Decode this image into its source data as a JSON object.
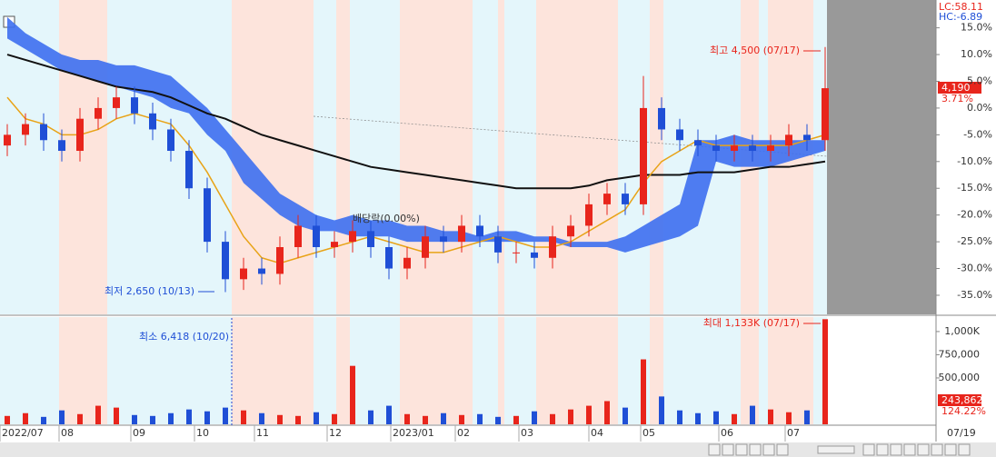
{
  "chart_data": {
    "type": "candlestick",
    "ylim": [
      -38.4,
      20.2
    ],
    "yticks": [
      {
        "value": 15,
        "label": "15.0%"
      },
      {
        "value": 10,
        "label": "10.0%"
      },
      {
        "value": 5,
        "label": "5.0%"
      },
      {
        "value": 0,
        "label": "0.0%"
      },
      {
        "value": -5,
        "label": "-5.0%"
      },
      {
        "value": -10,
        "label": "-10.0%"
      },
      {
        "value": -15,
        "label": "-15.0%"
      },
      {
        "value": -20,
        "label": "-20.0%"
      },
      {
        "value": -25,
        "label": "-25.0%"
      },
      {
        "value": -30,
        "label": "-30.0%"
      },
      {
        "value": -35,
        "label": "-35.0%"
      }
    ],
    "x_labels": [
      "2022/07",
      "08",
      "09",
      "10",
      "11",
      "12",
      "2023/01",
      "02",
      "03",
      "04",
      "05",
      "06",
      "07"
    ],
    "open": [
      -7,
      -5,
      -3,
      -6,
      -8,
      -2,
      0,
      2,
      -1,
      -4,
      -8,
      -15,
      -25,
      -32,
      -30,
      -31,
      -26,
      -22,
      -26,
      -25,
      -23,
      -26,
      -30,
      -28,
      -24,
      -25,
      -22,
      -24,
      -27,
      -27,
      -28,
      -24,
      -22,
      -18,
      -16,
      -18,
      0,
      -4,
      -6,
      -7,
      -8,
      -7,
      -8,
      -7,
      -5,
      -6
    ],
    "high": [
      -3,
      -1,
      -1,
      -4,
      0,
      2,
      4,
      4,
      1,
      -2,
      -6,
      -13,
      -23,
      -28,
      -28,
      -24,
      -20,
      -20,
      -23,
      -21,
      -21,
      -24,
      -26,
      -22,
      -22,
      -20,
      -20,
      -22,
      -25,
      -25,
      -22,
      -20,
      -16,
      -14,
      -14,
      6,
      2,
      -2,
      -4,
      -5,
      -5,
      -5,
      -5,
      -3,
      -3,
      11.4
    ],
    "low": [
      -9,
      -7,
      -8,
      -10,
      -10,
      -4,
      -2,
      -3,
      -6,
      -10,
      -17,
      -27,
      -34.4,
      -34,
      -33,
      -33,
      -28,
      -28,
      -28,
      -27,
      -28,
      -32,
      -32,
      -30,
      -27,
      -27,
      -26,
      -29,
      -29,
      -30,
      -30,
      -26,
      -24,
      -20,
      -20,
      -20,
      -6,
      -8,
      -9,
      -10,
      -10,
      -10,
      -10,
      -9,
      -8,
      -8
    ],
    "close": [
      -5,
      -3,
      -6,
      -8,
      -2,
      0,
      2,
      -1,
      -4,
      -8,
      -15,
      -25,
      -32,
      -30,
      -31,
      -26,
      -22,
      -26,
      -25,
      -23,
      -26,
      -30,
      -28,
      -24,
      -25,
      -22,
      -24,
      -27,
      -27,
      -28,
      -24,
      -22,
      -18,
      -16,
      -18,
      0,
      -4,
      -6,
      -7,
      -8,
      -7,
      -8,
      -7,
      -5,
      -6,
      3.71
    ],
    "up_color": "#e8251c",
    "down_color": "#1f4fd6",
    "cloud_color": "#3d6ff0",
    "cloud_upper": [
      17,
      14,
      12,
      10,
      9,
      9,
      8,
      8,
      7,
      6,
      3,
      0,
      -4,
      -8,
      -12,
      -16,
      -18,
      -20,
      -21,
      -20,
      -21,
      -21,
      -22,
      -22,
      -23,
      -23,
      -24,
      -23,
      -23,
      -24,
      -24,
      -25,
      -25,
      -25,
      -24,
      -22,
      -20,
      -18,
      -6,
      -6,
      -5,
      -6,
      -6,
      -6,
      -6,
      -6
    ],
    "cloud_lower": [
      13,
      11,
      9,
      7,
      6,
      5,
      4,
      3,
      2,
      0,
      -1,
      -5,
      -8,
      -14,
      -17,
      -20,
      -22,
      -23,
      -23,
      -24,
      -24,
      -24,
      -25,
      -25,
      -25,
      -25,
      -25,
      -25,
      -25,
      -25,
      -25,
      -26,
      -26,
      -26,
      -27,
      -26,
      -25,
      -24,
      -22,
      -10,
      -11,
      -11,
      -11,
      -10,
      -9,
      -8
    ],
    "lines": [
      {
        "color": "#111111",
        "values": [
          10,
          9,
          8,
          7,
          6,
          5,
          4,
          3.5,
          3,
          2,
          0.5,
          -1,
          -2,
          -3.5,
          -5,
          -6,
          -7,
          -8,
          -9,
          -10,
          -11,
          -11.5,
          -12,
          -12.5,
          -13,
          -13.5,
          -14,
          -14.5,
          -15,
          -15,
          -15,
          -15,
          -14.5,
          -13.5,
          -13,
          -12.5,
          -12.5,
          -12.5,
          -12,
          -12,
          -12,
          -11.5,
          -11,
          -11,
          -10.5,
          -10
        ]
      },
      {
        "color": "#e8a317",
        "values": [
          2,
          -2,
          -3,
          -5,
          -5,
          -4,
          -2,
          -1,
          -2,
          -3,
          -7,
          -12,
          -18,
          -24,
          -28,
          -29,
          -28,
          -27,
          -26,
          -25,
          -24,
          -25,
          -26,
          -27,
          -27,
          -26,
          -25,
          -24,
          -25,
          -26,
          -26,
          -25,
          -23,
          -21,
          -19,
          -14,
          -10,
          -8,
          -6,
          -7,
          -7,
          -7,
          -7,
          -7,
          -6,
          -5
        ]
      }
    ],
    "volume": [
      90000,
      120000,
      80000,
      150000,
      110000,
      200000,
      180000,
      100000,
      90000,
      120000,
      160000,
      140000,
      180000,
      150000,
      120000,
      100000,
      90000,
      130000,
      110000,
      630000,
      150000,
      200000,
      110000,
      90000,
      120000,
      100000,
      110000,
      80000,
      90000,
      140000,
      110000,
      160000,
      200000,
      250000,
      180000,
      700000,
      300000,
      150000,
      120000,
      140000,
      110000,
      200000,
      160000,
      130000,
      150000,
      1133000
    ],
    "vlim": [
      0,
      1146000
    ],
    "vticks": [
      {
        "value": 1000000,
        "label": "1,000K"
      },
      {
        "value": 750000,
        "label": "750,000"
      },
      {
        "value": 500000,
        "label": "500,000"
      }
    ],
    "annotations": [
      "최고 4,500 (07/17)",
      "최저 2,650 (10/13)",
      "배당락(0.00%)",
      "최소 6,418 (10/20)",
      "최대 1,133K (07/17)"
    ],
    "right_labels": {
      "lc": "LC:58.11",
      "hc": "HC:-6.89",
      "price": "4,190",
      "change": "3.71%",
      "volume": "243,862",
      "volume_change": "124.22%",
      "date": "07/19"
    }
  }
}
